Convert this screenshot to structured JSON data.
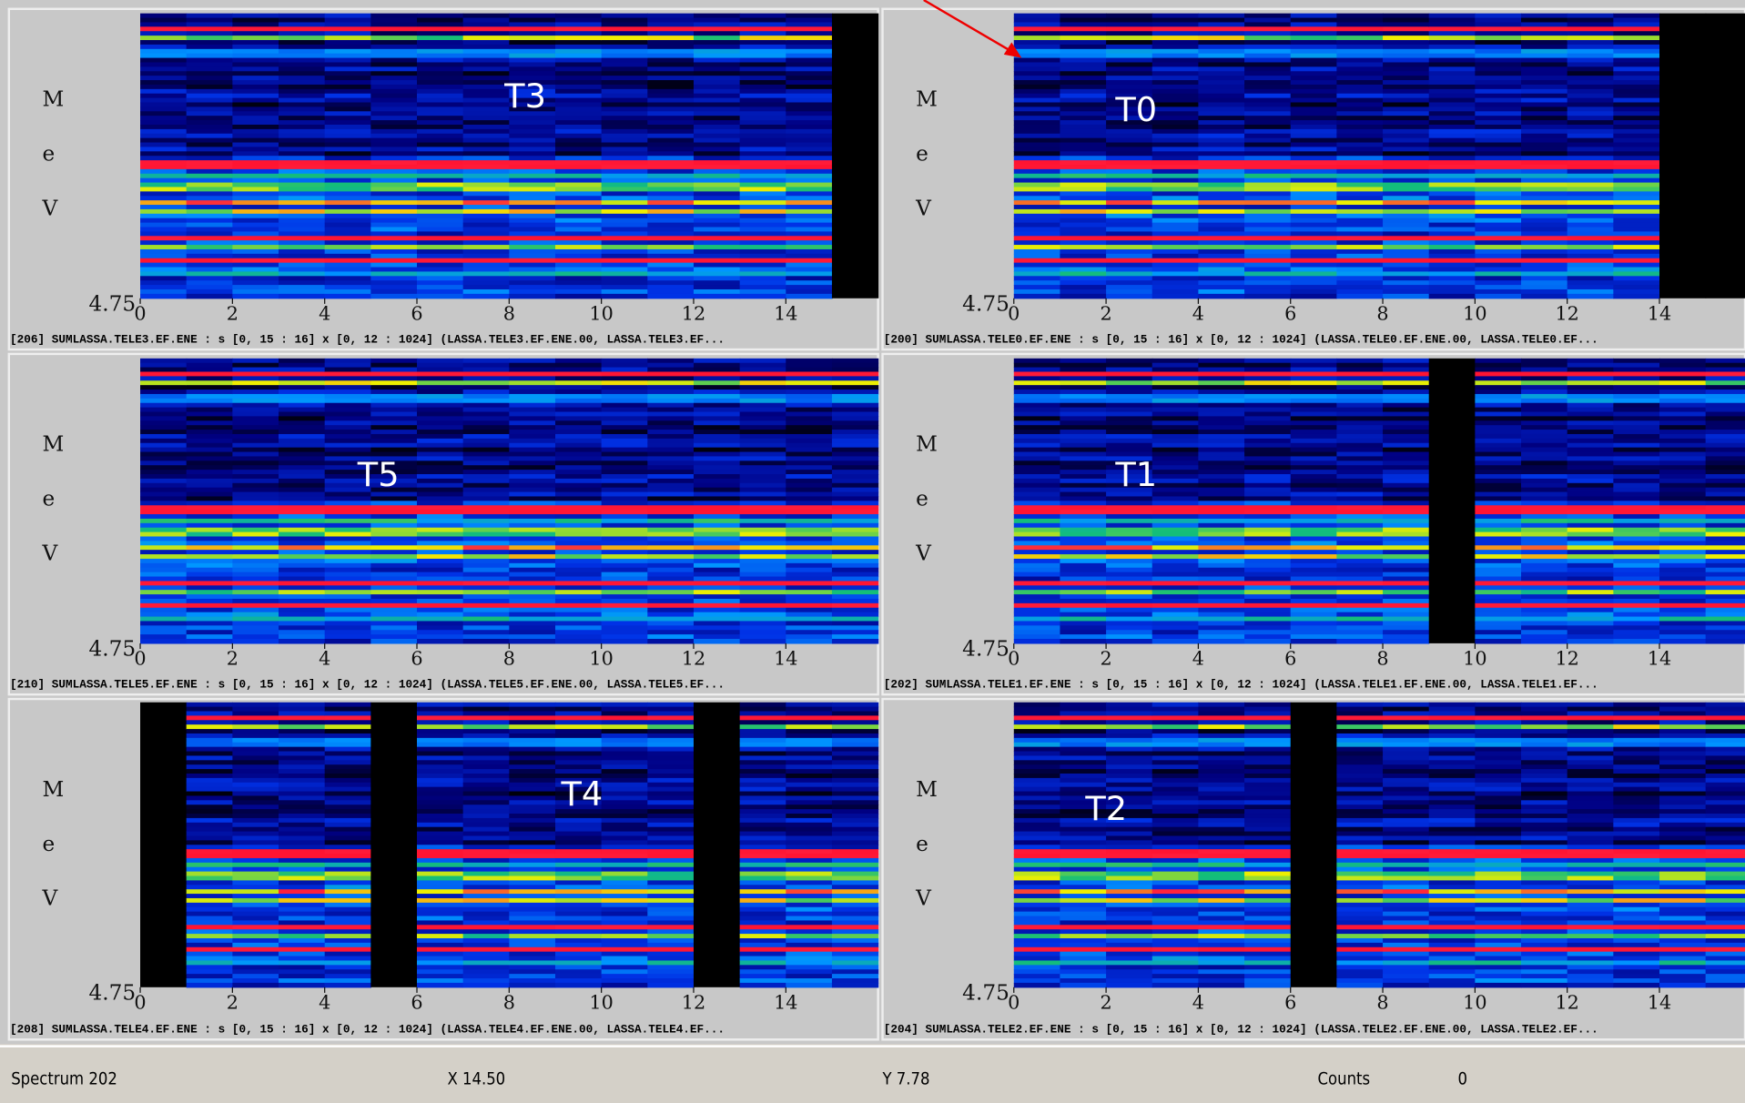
{
  "panels": [
    {
      "label": "T3",
      "y_axis_label": [
        "M",
        "e",
        "V"
      ],
      "y_min_label": "4.75",
      "xlim": [
        0,
        16
      ],
      "xticks": [
        0,
        2,
        4,
        6,
        8,
        10,
        12,
        14
      ],
      "caption": "[206] SUMLASSA.TELE3.EF.ENE : s [0, 15 : 16] x [0, 12 : 1024] (LASSA.TELE3.EF.ENE.00, LASSA.TELE3.EF..."
    },
    {
      "label": "T0",
      "y_axis_label": [
        "M",
        "e",
        "V"
      ],
      "y_min_label": "4.75",
      "xlim": [
        0,
        16
      ],
      "xticks": [
        0,
        2,
        4,
        6,
        8,
        10,
        12,
        14
      ],
      "caption": "[200] SUMLASSA.TELE0.EF.ENE : s [0, 15 : 16] x [0, 12 : 1024] (LASSA.TELE0.EF.ENE.00, LASSA.TELE0.EF..."
    },
    {
      "label": "T5",
      "y_axis_label": [
        "M",
        "e",
        "V"
      ],
      "y_min_label": "4.75",
      "xlim": [
        0,
        16
      ],
      "xticks": [
        0,
        2,
        4,
        6,
        8,
        10,
        12,
        14
      ],
      "caption": "[210] SUMLASSA.TELE5.EF.ENE : s [0, 15 : 16] x [0, 12 : 1024] (LASSA.TELE5.EF.ENE.00, LASSA.TELE5.EF..."
    },
    {
      "label": "T1",
      "y_axis_label": [
        "M",
        "e",
        "V"
      ],
      "y_min_label": "4.75",
      "xlim": [
        0,
        16
      ],
      "xticks": [
        0,
        2,
        4,
        6,
        8,
        10,
        12,
        14
      ],
      "caption": "[202] SUMLASSA.TELE1.EF.ENE : s [0, 15 : 16] x [0, 12 : 1024] (LASSA.TELE1.EF.ENE.00, LASSA.TELE1.EF..."
    },
    {
      "label": "T4",
      "y_axis_label": [
        "M",
        "e",
        "V"
      ],
      "y_min_label": "4.75",
      "xlim": [
        0,
        16
      ],
      "xticks": [
        0,
        2,
        4,
        6,
        8,
        10,
        12,
        14
      ],
      "caption": "[208] SUMLASSA.TELE4.EF.ENE : s [0, 15 : 16] x [0, 12 : 1024] (LASSA.TELE4.EF.ENE.00, LASSA.TELE4.EF..."
    },
    {
      "label": "T2",
      "y_axis_label": [
        "M",
        "e",
        "V"
      ],
      "y_min_label": "4.75",
      "xlim": [
        0,
        16
      ],
      "xticks": [
        0,
        2,
        4,
        6,
        8,
        10,
        12,
        14
      ],
      "caption": "[204] SUMLASSA.TELE2.EF.ENE : s [0, 15 : 16] x [0, 12 : 1024] (LASSA.TELE2.EF.ENE.00, LASSA.TELE2.EF..."
    }
  ],
  "status_bar": {
    "spectrum": "Spectrum 202",
    "x": "X 14.50",
    "y": "Y 7.78",
    "counts_label": "Counts",
    "counts_value": "0"
  }
}
